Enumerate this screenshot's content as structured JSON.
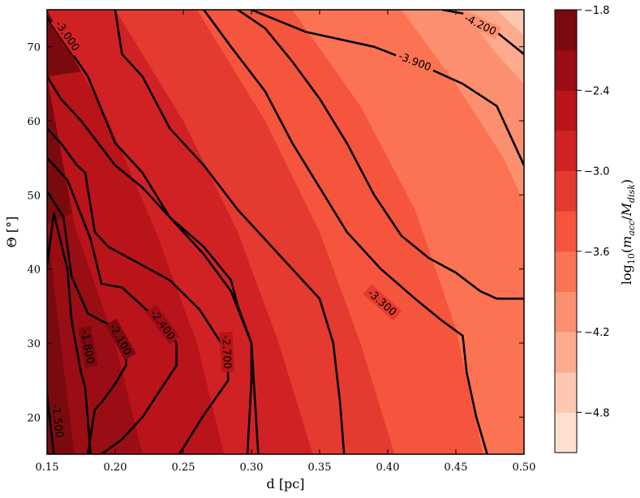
{
  "chart_data": {
    "type": "contour",
    "xlabel": "d [pc]",
    "ylabel": "Θ [°]",
    "xlim": [
      0.15,
      0.5
    ],
    "ylim": [
      15,
      75
    ],
    "x_ticks": [
      0.15,
      0.2,
      0.25,
      0.3,
      0.35,
      0.4,
      0.45,
      0.5
    ],
    "x_tick_labels": [
      "0.15",
      "0.20",
      "0.25",
      "0.30",
      "0.35",
      "0.40",
      "0.45",
      "0.50"
    ],
    "y_ticks": [
      20,
      30,
      40,
      50,
      60,
      70
    ],
    "y_tick_labels": [
      "20",
      "30",
      "40",
      "50",
      "60",
      "70"
    ],
    "colorbar": {
      "label": "log10(macc/Mdisk)",
      "range": [
        -5.1,
        -1.8
      ],
      "levels": [
        -5.1,
        -4.8,
        -4.5,
        -4.2,
        -3.9,
        -3.6,
        -3.3,
        -3.0,
        -2.7,
        -2.4,
        -2.1,
        -1.8
      ],
      "colors": [
        "#fee0d2",
        "#fdc6b0",
        "#fcab8f",
        "#fc8f6f",
        "#fb7353",
        "#f5553c",
        "#e43a2f",
        "#d02225",
        "#b91419",
        "#9a0d14",
        "#7b0a0f"
      ],
      "ticks": [
        -4.8,
        -4.2,
        -3.6,
        -3.0,
        -2.4,
        -1.8
      ],
      "tick_labels": [
        "−4.8",
        "−4.2",
        "−3.6",
        "−3.0",
        "−2.4",
        "−1.8"
      ]
    },
    "filled_boundaries": [
      {
        "level": -2.1,
        "points": [
          [
            0.15,
            46
          ],
          [
            0.16,
            30
          ],
          [
            0.17,
            15
          ]
        ]
      },
      {
        "level": -2.4,
        "points": [
          [
            0.15,
            66
          ],
          [
            0.17,
            46
          ],
          [
            0.2,
            30
          ],
          [
            0.22,
            15
          ]
        ]
      },
      {
        "level": -2.7,
        "points": [
          [
            0.15,
            75
          ],
          [
            0.195,
            60
          ],
          [
            0.23,
            45
          ],
          [
            0.26,
            30
          ],
          [
            0.28,
            15
          ]
        ]
      },
      {
        "level": -3.0,
        "points": [
          [
            0.2,
            75
          ],
          [
            0.25,
            60
          ],
          [
            0.29,
            45
          ],
          [
            0.32,
            30
          ],
          [
            0.345,
            15
          ]
        ]
      },
      {
        "level": -3.3,
        "points": [
          [
            0.26,
            75
          ],
          [
            0.31,
            60
          ],
          [
            0.35,
            45
          ],
          [
            0.38,
            30
          ],
          [
            0.405,
            15
          ]
        ]
      },
      {
        "level": -3.6,
        "points": [
          [
            0.33,
            75
          ],
          [
            0.38,
            62
          ],
          [
            0.42,
            48
          ],
          [
            0.45,
            32
          ],
          [
            0.47,
            15
          ]
        ]
      },
      {
        "level": -3.9,
        "points": [
          [
            0.41,
            75
          ],
          [
            0.45,
            65
          ],
          [
            0.485,
            55
          ],
          [
            0.5,
            49
          ]
        ]
      },
      {
        "level": -4.2,
        "points": [
          [
            0.455,
            75
          ],
          [
            0.48,
            69
          ],
          [
            0.5,
            65
          ]
        ]
      },
      {
        "level": -4.5,
        "points": [
          [
            0.48,
            75
          ],
          [
            0.5,
            71.5
          ]
        ]
      }
    ],
    "contours": [
      {
        "level": -1.5,
        "label": "-1.500",
        "label_at": [
          0.158,
          19.5
        ],
        "points": [
          [
            0.15,
            23
          ],
          [
            0.155,
            15
          ]
        ]
      },
      {
        "level": -1.8,
        "label": "-1.800",
        "label_at": [
          0.18,
          29.5
        ],
        "points": [
          [
            0.15,
            40.5
          ],
          [
            0.155,
            47.5
          ],
          [
            0.165,
            40
          ],
          [
            0.168,
            33
          ],
          [
            0.175,
            26
          ],
          [
            0.178,
            24
          ],
          [
            0.182,
            15
          ]
        ]
      },
      {
        "level": -2.1,
        "label": "-2.100",
        "label_at": [
          0.204,
          30.5
        ],
        "points": [
          [
            0.15,
            50.5
          ],
          [
            0.162,
            47
          ],
          [
            0.168,
            39
          ],
          [
            0.18,
            34
          ],
          [
            0.19,
            33
          ],
          [
            0.198,
            32.3
          ],
          [
            0.208,
            29
          ],
          [
            0.208,
            27
          ],
          [
            0.2,
            24.5
          ],
          [
            0.19,
            22
          ],
          [
            0.185,
            21
          ],
          [
            0.18,
            15
          ]
        ]
      },
      {
        "level": -2.4,
        "label": "-2.400",
        "label_at": [
          0.235,
          32.5
        ],
        "points": [
          [
            0.15,
            55
          ],
          [
            0.165,
            52
          ],
          [
            0.182,
            44
          ],
          [
            0.19,
            38
          ],
          [
            0.205,
            37.5
          ],
          [
            0.22,
            35
          ],
          [
            0.235,
            32.5
          ],
          [
            0.245,
            30
          ],
          [
            0.245,
            27
          ],
          [
            0.22,
            20
          ],
          [
            0.205,
            17
          ],
          [
            0.19,
            15
          ]
        ]
      },
      {
        "level": -2.7,
        "label": "-2.700",
        "label_at": [
          0.282,
          28.8
        ],
        "points": [
          [
            0.15,
            59
          ],
          [
            0.16,
            57
          ],
          [
            0.172,
            54
          ],
          [
            0.178,
            53
          ],
          [
            0.185,
            45
          ],
          [
            0.195,
            43
          ],
          [
            0.215,
            41
          ],
          [
            0.24,
            38.5
          ],
          [
            0.262,
            34.5
          ],
          [
            0.282,
            28.8
          ],
          [
            0.283,
            25
          ],
          [
            0.264,
            20
          ],
          [
            0.247,
            15
          ]
        ]
      },
      {
        "level": -3.0,
        "label": "-3.000",
        "label_at": [
          0.165,
          71.5
        ],
        "points": [
          [
            0.15,
            74
          ],
          [
            0.18,
            66
          ],
          [
            0.2,
            57
          ],
          [
            0.22,
            53
          ],
          [
            0.24,
            47
          ],
          [
            0.265,
            42
          ],
          [
            0.285,
            37
          ],
          [
            0.3,
            30
          ],
          [
            0.3,
            25
          ],
          [
            0.297,
            15
          ]
        ]
      },
      {
        "level": -3.0,
        "label": "",
        "label_at": null,
        "points": [
          [
            0.15,
            66
          ],
          [
            0.16,
            63
          ],
          [
            0.175,
            60
          ],
          [
            0.2,
            54
          ],
          [
            0.22,
            51
          ],
          [
            0.24,
            47
          ],
          [
            0.265,
            43
          ],
          [
            0.285,
            38.5
          ],
          [
            0.29,
            35
          ],
          [
            0.3,
            30
          ],
          [
            0.305,
            15
          ]
        ]
      },
      {
        "level": -3.0,
        "label": "",
        "label_at": null,
        "points": [
          [
            0.2,
            75
          ],
          [
            0.205,
            69
          ],
          [
            0.22,
            66
          ],
          [
            0.24,
            59
          ],
          [
            0.265,
            54
          ],
          [
            0.29,
            48
          ],
          [
            0.31,
            44
          ],
          [
            0.33,
            40
          ],
          [
            0.35,
            36
          ],
          [
            0.36,
            30
          ],
          [
            0.365,
            22
          ],
          [
            0.368,
            15
          ]
        ]
      },
      {
        "level": -3.3,
        "label": "-3.300",
        "label_at": [
          0.396,
          35.5
        ],
        "points": [
          [
            0.265,
            75
          ],
          [
            0.285,
            70
          ],
          [
            0.31,
            64
          ],
          [
            0.33,
            57
          ],
          [
            0.35,
            51
          ],
          [
            0.37,
            45
          ],
          [
            0.395,
            40
          ],
          [
            0.42,
            36
          ],
          [
            0.44,
            33
          ],
          [
            0.455,
            31
          ],
          [
            0.458,
            26
          ],
          [
            0.465,
            20
          ],
          [
            0.473,
            15
          ]
        ]
      },
      {
        "level": -3.3,
        "label": "",
        "label_at": null,
        "points": [
          [
            0.29,
            75
          ],
          [
            0.31,
            72.5
          ],
          [
            0.33,
            68
          ],
          [
            0.35,
            63
          ],
          [
            0.37,
            57
          ],
          [
            0.39,
            50
          ],
          [
            0.41,
            44.5
          ],
          [
            0.43,
            41.5
          ],
          [
            0.45,
            39.5
          ],
          [
            0.468,
            37
          ],
          [
            0.48,
            36
          ],
          [
            0.5,
            36
          ]
        ]
      },
      {
        "level": -3.9,
        "label": "-3.900",
        "label_at": [
          0.42,
          68
        ],
        "points": [
          [
            0.3,
            75
          ],
          [
            0.34,
            72
          ],
          [
            0.39,
            70
          ],
          [
            0.425,
            67.5
          ],
          [
            0.455,
            65
          ],
          [
            0.48,
            62
          ],
          [
            0.5,
            54
          ]
        ]
      },
      {
        "level": -4.2,
        "label": "-4.200",
        "label_at": [
          0.468,
          73
        ],
        "points": [
          [
            0.44,
            75
          ],
          [
            0.455,
            74.5
          ],
          [
            0.475,
            72.7
          ],
          [
            0.5,
            69
          ]
        ]
      }
    ]
  }
}
